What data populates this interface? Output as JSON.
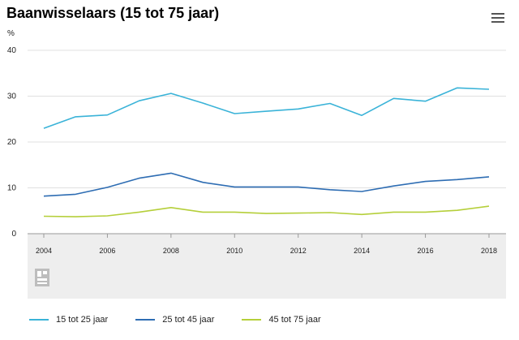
{
  "chart_data": {
    "type": "line",
    "title": "Baanwisselaars (15 tot 75 jaar)",
    "ylabel": "%",
    "xlabel": "",
    "x": [
      2004,
      2005,
      2006,
      2007,
      2008,
      2009,
      2010,
      2011,
      2012,
      2013,
      2014,
      2015,
      2016,
      2017,
      2018
    ],
    "xticks": [
      "2004",
      "2006",
      "2008",
      "2010",
      "2012",
      "2014",
      "2016",
      "2018"
    ],
    "ylim": [
      0,
      40
    ],
    "yticks": [
      "0",
      "10",
      "20",
      "30",
      "40"
    ],
    "grid": true,
    "legend_position": "bottom",
    "series": [
      {
        "name": "15 tot 25 jaar",
        "color": "#3ab3d8",
        "values": [
          23.0,
          25.5,
          25.9,
          29.0,
          30.6,
          28.5,
          26.2,
          26.7,
          27.2,
          28.4,
          25.8,
          29.5,
          28.9,
          31.8,
          31.5
        ]
      },
      {
        "name": "25 tot 45 jaar",
        "color": "#2e6db3",
        "values": [
          8.2,
          8.6,
          10.1,
          12.1,
          13.2,
          11.2,
          10.2,
          10.2,
          10.2,
          9.6,
          9.2,
          10.4,
          11.4,
          11.8,
          12.4
        ]
      },
      {
        "name": "45 tot 75 jaar",
        "color": "#b5cf3a",
        "values": [
          3.8,
          3.7,
          3.9,
          4.7,
          5.7,
          4.7,
          4.7,
          4.4,
          4.5,
          4.6,
          4.2,
          4.7,
          4.7,
          5.1,
          6.0
        ]
      }
    ]
  },
  "toolbar": {
    "menu_icon": "hamburger-menu-icon"
  },
  "footer": {
    "logo_icon": "cbs-logo-icon"
  }
}
